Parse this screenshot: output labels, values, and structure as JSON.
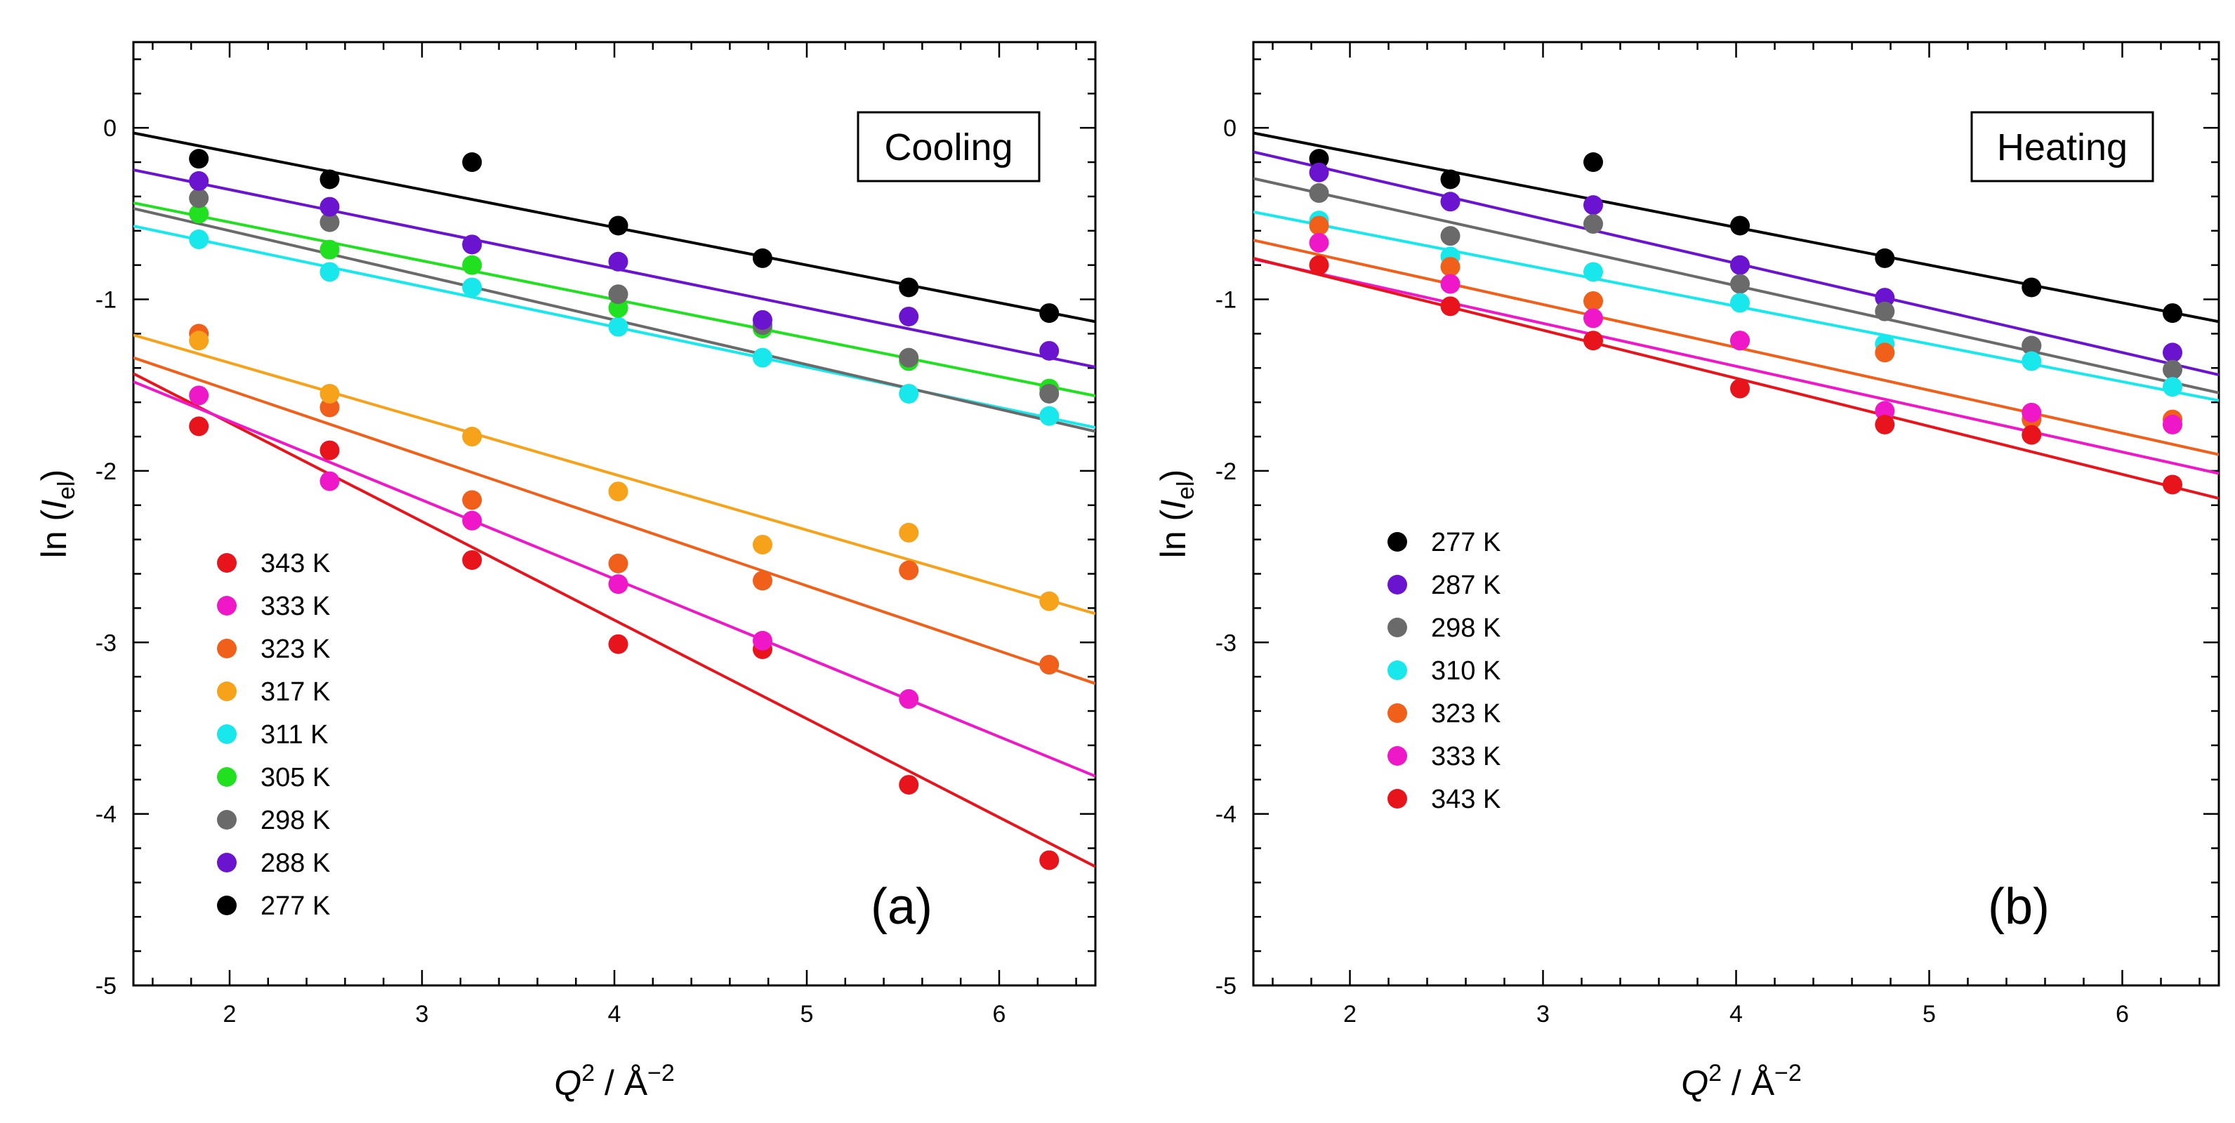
{
  "figure": {
    "panels": [
      {
        "id": "a",
        "box_label": "Cooling",
        "panel_tag": "(a)",
        "ylabel_main": "ln (",
        "ylabel_I": "I",
        "ylabel_sub": "el",
        "ylabel_close": ")",
        "xlabel_Q": "Q",
        "xlabel_sup": "2",
        "xlabel_unit": " / Å",
        "xlabel_unit_sup": "−2"
      },
      {
        "id": "b",
        "box_label": "Heating",
        "panel_tag": "(b)",
        "ylabel_main": "ln (",
        "ylabel_I": "I",
        "ylabel_sub": "el",
        "ylabel_close": ")",
        "xlabel_Q": "Q",
        "xlabel_sup": "2",
        "xlabel_unit": " / Å",
        "xlabel_unit_sup": "−2"
      }
    ]
  },
  "chart_data": [
    {
      "type": "scatter",
      "title": "",
      "annotation": "Cooling",
      "panel_label": "(a)",
      "xlabel": "Q2 / Å−2",
      "ylabel": "ln (Iel)",
      "xlim": [
        1.5,
        6.5
      ],
      "ylim": [
        -5,
        0.5
      ],
      "xticks": [
        2,
        3,
        4,
        5,
        6
      ],
      "yticks": [
        0,
        -1,
        -2,
        -3,
        -4,
        -5
      ],
      "ytick_labels": [
        "0",
        "-1",
        "-2",
        "-3",
        "-4",
        "-5"
      ],
      "grid": false,
      "legend_position": "bottom-left",
      "x": [
        1.84,
        2.52,
        3.26,
        4.02,
        4.77,
        5.53,
        6.26
      ],
      "series": [
        {
          "name": "343 K",
          "color": "#e8141c",
          "values": [
            -1.74,
            -1.88,
            -2.52,
            -3.01,
            -3.04,
            -3.83,
            -4.27
          ],
          "fit": {
            "slope": -0.575,
            "intercept": -0.57
          }
        },
        {
          "name": "333 K",
          "color": "#ee18c8",
          "values": [
            -1.56,
            -2.06,
            -2.29,
            -2.66,
            -2.99,
            -3.33,
            null
          ],
          "fit": {
            "slope": -0.46,
            "intercept": -0.79
          }
        },
        {
          "name": "323 K",
          "color": "#f0601a",
          "values": [
            -1.2,
            -1.63,
            -2.17,
            -2.54,
            -2.64,
            -2.58,
            -3.13
          ],
          "fit": {
            "slope": -0.38,
            "intercept": -0.77
          }
        },
        {
          "name": "317 K",
          "color": "#f6a21a",
          "values": [
            -1.24,
            -1.55,
            -1.8,
            -2.12,
            -2.43,
            -2.36,
            -2.76
          ],
          "fit": {
            "slope": -0.325,
            "intercept": -0.72
          }
        },
        {
          "name": "311 K",
          "color": "#18e8ec",
          "values": [
            -0.65,
            -0.84,
            -0.93,
            -1.16,
            -1.34,
            -1.55,
            -1.68
          ],
          "fit": {
            "slope": -0.235,
            "intercept": -0.22
          }
        },
        {
          "name": "305 K",
          "color": "#20e020",
          "values": [
            -0.5,
            -0.71,
            -0.8,
            -1.05,
            -1.17,
            -1.36,
            -1.52
          ],
          "fit": {
            "slope": -0.225,
            "intercept": -0.1
          }
        },
        {
          "name": "298 K",
          "color": "#6a6a6a",
          "values": [
            -0.41,
            -0.55,
            -0.68,
            -0.97,
            -1.15,
            -1.34,
            -1.55
          ],
          "fit": {
            "slope": -0.26,
            "intercept": -0.08
          }
        },
        {
          "name": "288 K",
          "color": "#6a14d0",
          "values": [
            -0.31,
            -0.46,
            -0.68,
            -0.78,
            -1.12,
            -1.1,
            -1.3
          ],
          "fit": {
            "slope": -0.23,
            "intercept": 0.1
          }
        },
        {
          "name": "277 K",
          "color": "#000000",
          "values": [
            -0.18,
            -0.3,
            -0.2,
            -0.57,
            -0.76,
            -0.93,
            -1.08
          ],
          "fit": {
            "slope": -0.22,
            "intercept": 0.3
          }
        }
      ]
    },
    {
      "type": "scatter",
      "title": "",
      "annotation": "Heating",
      "panel_label": "(b)",
      "xlabel": "Q2 / Å−2",
      "ylabel": "ln (Iel)",
      "xlim": [
        1.5,
        6.5
      ],
      "ylim": [
        -5,
        0.5
      ],
      "xticks": [
        2,
        3,
        4,
        5,
        6
      ],
      "yticks": [
        0,
        -1,
        -2,
        -3,
        -4,
        -5
      ],
      "ytick_labels": [
        "0",
        "-1",
        "-2",
        "-3",
        "-4",
        "-5"
      ],
      "grid": false,
      "legend_position": "middle-left",
      "x": [
        1.84,
        2.52,
        3.26,
        4.02,
        4.77,
        5.53,
        6.26
      ],
      "series": [
        {
          "name": "277 K",
          "color": "#000000",
          "values": [
            -0.18,
            -0.3,
            -0.2,
            -0.57,
            -0.76,
            -0.93,
            -1.08
          ],
          "fit": {
            "slope": -0.22,
            "intercept": 0.3
          }
        },
        {
          "name": "287 K",
          "color": "#6a14d0",
          "values": [
            -0.26,
            -0.43,
            -0.45,
            -0.8,
            -0.99,
            -1.27,
            -1.31
          ],
          "fit": {
            "slope": -0.26,
            "intercept": 0.25
          }
        },
        {
          "name": "298 K",
          "color": "#6a6a6a",
          "values": [
            -0.38,
            -0.63,
            -0.56,
            -0.91,
            -1.07,
            -1.27,
            -1.41
          ],
          "fit": {
            "slope": -0.25,
            "intercept": 0.08
          }
        },
        {
          "name": "310 K",
          "color": "#18e8ec",
          "values": [
            -0.54,
            -0.75,
            -0.84,
            -1.02,
            -1.26,
            -1.36,
            -1.51
          ],
          "fit": {
            "slope": -0.22,
            "intercept": -0.16
          }
        },
        {
          "name": "323 K",
          "color": "#f0601a",
          "values": [
            -0.57,
            -0.81,
            -1.01,
            -1.24,
            -1.31,
            -1.7,
            -1.7
          ],
          "fit": {
            "slope": -0.25,
            "intercept": -0.28
          }
        },
        {
          "name": "333 K",
          "color": "#ee18c8",
          "values": [
            -0.67,
            -0.91,
            -1.11,
            -1.24,
            -1.65,
            -1.66,
            -1.73
          ],
          "fit": {
            "slope": -0.25,
            "intercept": -0.39
          }
        },
        {
          "name": "343 K",
          "color": "#e8141c",
          "values": [
            -0.8,
            -1.04,
            -1.24,
            -1.52,
            -1.73,
            -1.79,
            -2.08
          ],
          "fit": {
            "slope": -0.28,
            "intercept": -0.34
          }
        }
      ]
    }
  ]
}
